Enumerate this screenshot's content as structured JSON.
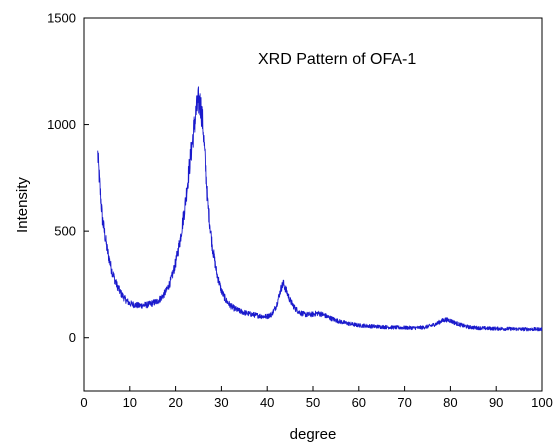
{
  "chart_data": {
    "type": "line",
    "title": "XRD Pattern of OFA-1",
    "xlabel": "degree",
    "ylabel": "Intensity",
    "xlim": [
      0,
      100
    ],
    "ylim": [
      -250,
      1500
    ],
    "xticks": [
      0,
      10,
      20,
      30,
      40,
      50,
      60,
      70,
      80,
      90,
      100
    ],
    "yticks": [
      0,
      500,
      1000,
      1500
    ],
    "x_tick_labels": [
      "0",
      "10",
      "20",
      "30",
      "40",
      "50",
      "60",
      "70",
      "80",
      "90",
      "100"
    ],
    "y_tick_labels": [
      "0",
      "500",
      "1000",
      "1500"
    ],
    "grid": false,
    "legend": "none",
    "color": "#1a1acc",
    "series": [
      {
        "x": [
          3,
          3.5,
          4,
          5,
          6,
          7,
          8,
          9,
          10,
          12,
          14,
          16,
          17,
          18,
          19,
          20,
          21,
          22,
          23,
          24,
          24.5,
          25,
          25.5,
          26,
          26.5,
          27,
          28,
          29,
          30,
          31,
          32,
          33,
          34,
          35,
          36,
          37,
          38,
          39,
          40,
          41,
          42,
          43,
          43.5,
          44,
          45,
          46,
          47,
          48,
          49,
          50,
          51,
          52,
          53,
          54,
          55,
          56,
          58,
          60,
          62,
          64,
          66,
          68,
          70,
          72,
          74,
          75,
          76,
          77,
          78,
          79,
          80,
          81,
          82,
          83,
          84,
          86,
          88,
          90,
          92,
          94,
          96,
          98,
          100
        ],
        "y": [
          860,
          700,
          560,
          420,
          320,
          255,
          210,
          180,
          160,
          150,
          155,
          170,
          190,
          220,
          270,
          350,
          460,
          610,
          800,
          980,
          1060,
          1110,
          1090,
          990,
          820,
          630,
          430,
          300,
          220,
          175,
          150,
          135,
          125,
          118,
          112,
          108,
          104,
          100,
          100,
          110,
          150,
          230,
          255,
          230,
          175,
          140,
          120,
          110,
          108,
          110,
          115,
          110,
          100,
          90,
          82,
          75,
          65,
          58,
          55,
          52,
          50,
          48,
          47,
          46,
          48,
          52,
          58,
          66,
          78,
          85,
          80,
          70,
          62,
          55,
          50,
          46,
          44,
          43,
          42,
          41,
          40,
          40,
          40
        ]
      }
    ]
  }
}
